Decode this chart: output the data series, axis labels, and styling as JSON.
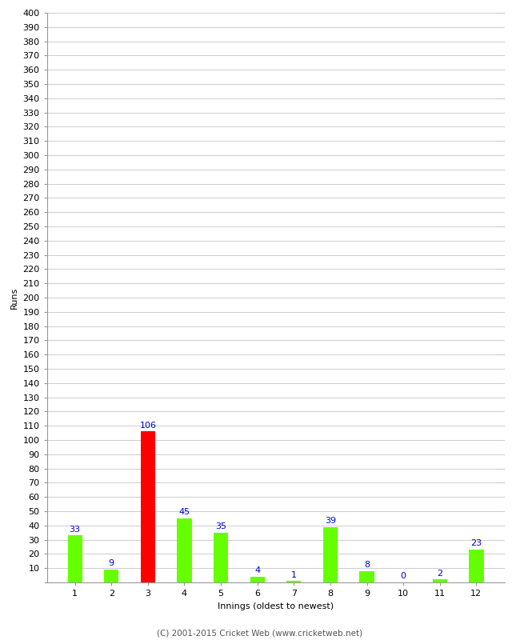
{
  "categories": [
    "1",
    "2",
    "3",
    "4",
    "5",
    "6",
    "7",
    "8",
    "9",
    "10",
    "11",
    "12"
  ],
  "values": [
    33,
    9,
    106,
    45,
    35,
    4,
    1,
    39,
    8,
    0,
    2,
    23
  ],
  "bar_colors": [
    "#66ff00",
    "#66ff00",
    "#ff0000",
    "#66ff00",
    "#66ff00",
    "#66ff00",
    "#66ff00",
    "#66ff00",
    "#66ff00",
    "#66ff00",
    "#66ff00",
    "#66ff00"
  ],
  "ylabel": "Runs",
  "xlabel": "Innings (oldest to newest)",
  "ylim": [
    0,
    400
  ],
  "yticks": [
    0,
    10,
    20,
    30,
    40,
    50,
    60,
    70,
    80,
    90,
    100,
    110,
    120,
    130,
    140,
    150,
    160,
    170,
    180,
    190,
    200,
    210,
    220,
    230,
    240,
    250,
    260,
    270,
    280,
    290,
    300,
    310,
    320,
    330,
    340,
    350,
    360,
    370,
    380,
    390,
    400
  ],
  "label_color": "#0000cc",
  "label_fontsize": 8,
  "tick_fontsize": 8,
  "xlabel_fontsize": 8,
  "ylabel_fontsize": 8,
  "footer": "(C) 2001-2015 Cricket Web (www.cricketweb.net)",
  "background_color": "#ffffff",
  "grid_color": "#cccccc",
  "bar_width": 0.4
}
